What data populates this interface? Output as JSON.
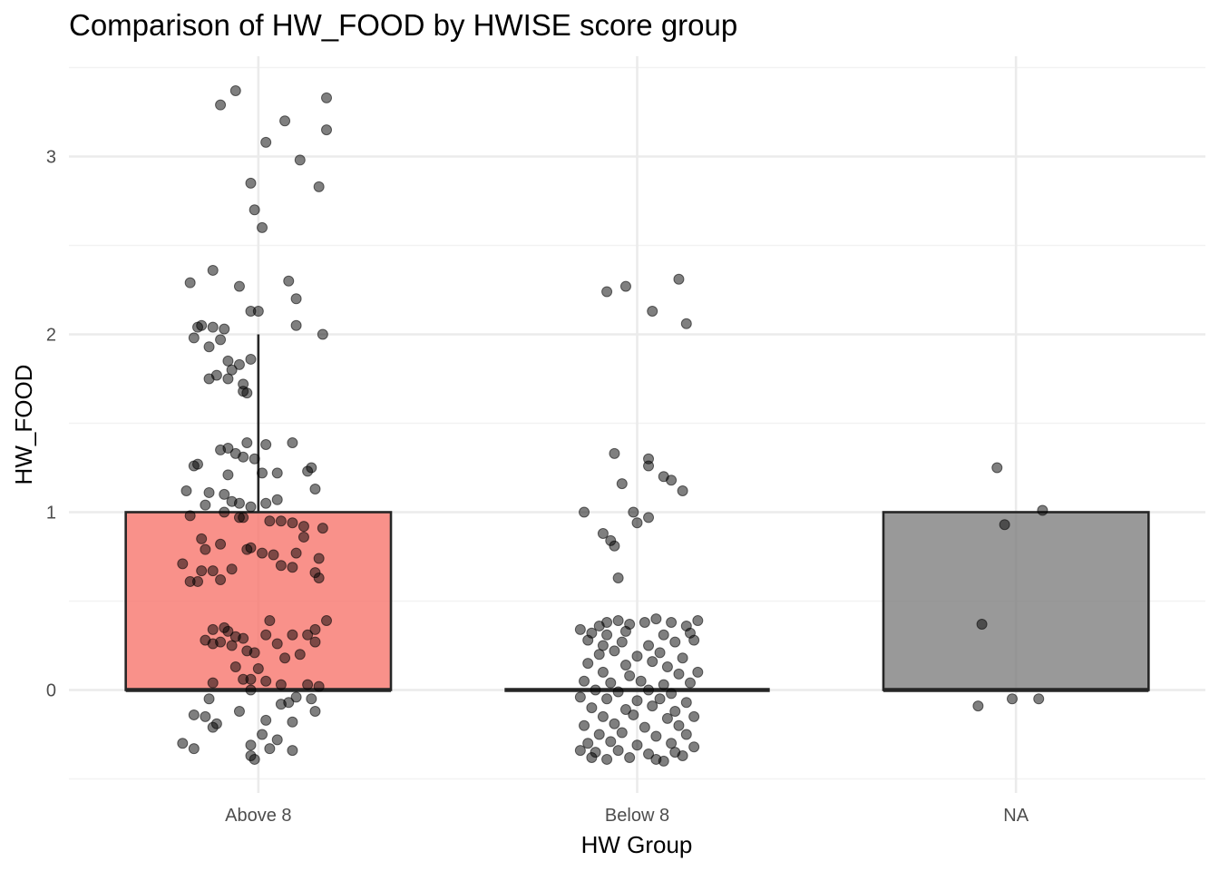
{
  "chart_data": {
    "type": "boxplot",
    "title": "Comparison of HW_FOOD by HWISE score group",
    "xlabel": "HW Group",
    "ylabel": "HW_FOOD",
    "ylim": [
      -0.5,
      3.5
    ],
    "yticks": [
      "0",
      "1",
      "2",
      "3"
    ],
    "categories": [
      "Above 8",
      "Below 8",
      "NA"
    ],
    "boxes": [
      {
        "category": "Above 8",
        "min": 0,
        "q1": 0,
        "median": 0,
        "q3": 1,
        "max": 2,
        "fill": "#f8766d"
      },
      {
        "category": "Below 8",
        "min": 0,
        "q1": 0,
        "median": 0,
        "q3": 0,
        "max": 0,
        "fill": "#f8766d"
      },
      {
        "category": "NA",
        "min": 0,
        "q1": 0,
        "median": 0,
        "q3": 1,
        "max": 1,
        "fill": "#7f7f7f"
      }
    ],
    "points": {
      "Above 8": [
        [
          -0.06,
          3.37
        ],
        [
          -0.1,
          3.29
        ],
        [
          0.18,
          3.33
        ],
        [
          0.07,
          3.2
        ],
        [
          0.18,
          3.15
        ],
        [
          0.02,
          3.08
        ],
        [
          0.11,
          2.98
        ],
        [
          -0.02,
          2.85
        ],
        [
          0.16,
          2.83
        ],
        [
          -0.01,
          2.7
        ],
        [
          0.01,
          2.6
        ],
        [
          -0.12,
          2.36
        ],
        [
          -0.18,
          2.29
        ],
        [
          0.08,
          2.3
        ],
        [
          -0.05,
          2.27
        ],
        [
          0.1,
          2.2
        ],
        [
          -0.02,
          2.13
        ],
        [
          0.0,
          2.13
        ],
        [
          0.17,
          2.0
        ],
        [
          0.1,
          2.05
        ],
        [
          -0.16,
          2.04
        ],
        [
          -0.12,
          2.04
        ],
        [
          -0.09,
          2.03
        ],
        [
          -0.15,
          2.05
        ],
        [
          -0.17,
          1.98
        ],
        [
          -0.1,
          1.97
        ],
        [
          -0.13,
          1.93
        ],
        [
          -0.08,
          1.85
        ],
        [
          -0.02,
          1.86
        ],
        [
          -0.05,
          1.83
        ],
        [
          -0.07,
          1.8
        ],
        [
          -0.11,
          1.77
        ],
        [
          -0.13,
          1.75
        ],
        [
          -0.08,
          1.75
        ],
        [
          -0.04,
          1.72
        ],
        [
          -0.03,
          1.67
        ],
        [
          -0.04,
          1.68
        ],
        [
          0.02,
          1.38
        ],
        [
          0.09,
          1.39
        ],
        [
          -0.03,
          1.39
        ],
        [
          -0.1,
          1.35
        ],
        [
          -0.08,
          1.36
        ],
        [
          -0.06,
          1.33
        ],
        [
          -0.04,
          1.31
        ],
        [
          -0.01,
          1.3
        ],
        [
          -0.16,
          1.27
        ],
        [
          -0.17,
          1.26
        ],
        [
          0.14,
          1.25
        ],
        [
          0.13,
          1.23
        ],
        [
          0.01,
          1.22
        ],
        [
          0.05,
          1.22
        ],
        [
          -0.08,
          1.21
        ],
        [
          0.15,
          1.13
        ],
        [
          -0.19,
          1.12
        ],
        [
          -0.13,
          1.11
        ],
        [
          -0.09,
          1.1
        ],
        [
          -0.07,
          1.06
        ],
        [
          -0.05,
          1.05
        ],
        [
          0.02,
          1.05
        ],
        [
          0.05,
          1.07
        ],
        [
          -0.14,
          1.04
        ],
        [
          -0.02,
          1.03
        ],
        [
          -0.09,
          1.0
        ],
        [
          -0.18,
          0.98
        ],
        [
          -0.05,
          0.97
        ],
        [
          -0.04,
          0.97
        ],
        [
          0.03,
          0.95
        ],
        [
          0.06,
          0.95
        ],
        [
          0.09,
          0.94
        ],
        [
          0.12,
          0.92
        ],
        [
          0.17,
          0.91
        ],
        [
          0.12,
          0.86
        ],
        [
          -0.15,
          0.85
        ],
        [
          -0.1,
          0.82
        ],
        [
          -0.14,
          0.79
        ],
        [
          -0.03,
          0.79
        ],
        [
          -0.02,
          0.8
        ],
        [
          0.01,
          0.77
        ],
        [
          0.04,
          0.76
        ],
        [
          0.1,
          0.77
        ],
        [
          0.16,
          0.74
        ],
        [
          -0.2,
          0.71
        ],
        [
          0.06,
          0.7
        ],
        [
          0.09,
          0.69
        ],
        [
          -0.15,
          0.67
        ],
        [
          -0.12,
          0.67
        ],
        [
          -0.07,
          0.68
        ],
        [
          0.15,
          0.66
        ],
        [
          0.16,
          0.63
        ],
        [
          -0.18,
          0.61
        ],
        [
          -0.16,
          0.61
        ],
        [
          -0.1,
          0.62
        ],
        [
          0.18,
          0.39
        ],
        [
          0.03,
          0.39
        ],
        [
          -0.09,
          0.35
        ],
        [
          -0.12,
          0.34
        ],
        [
          -0.08,
          0.33
        ],
        [
          0.15,
          0.34
        ],
        [
          -0.06,
          0.3
        ],
        [
          -0.04,
          0.29
        ],
        [
          0.02,
          0.31
        ],
        [
          0.09,
          0.31
        ],
        [
          0.13,
          0.31
        ],
        [
          -0.14,
          0.28
        ],
        [
          -0.12,
          0.26
        ],
        [
          -0.1,
          0.27
        ],
        [
          -0.07,
          0.25
        ],
        [
          0.05,
          0.26
        ],
        [
          0.15,
          0.27
        ],
        [
          -0.03,
          0.22
        ],
        [
          -0.01,
          0.21
        ],
        [
          0.07,
          0.18
        ],
        [
          0.11,
          0.2
        ],
        [
          -0.06,
          0.13
        ],
        [
          0.0,
          0.12
        ],
        [
          -0.04,
          0.06
        ],
        [
          -0.02,
          0.06
        ],
        [
          0.02,
          0.05
        ],
        [
          -0.12,
          0.04
        ],
        [
          0.06,
          0.03
        ],
        [
          0.13,
          0.03
        ],
        [
          0.16,
          0.02
        ],
        [
          -0.02,
          0.0
        ],
        [
          0.1,
          -0.04
        ],
        [
          0.14,
          -0.05
        ],
        [
          -0.13,
          -0.05
        ],
        [
          0.08,
          -0.07
        ],
        [
          0.06,
          -0.08
        ],
        [
          -0.05,
          -0.12
        ],
        [
          -0.17,
          -0.14
        ],
        [
          -0.14,
          -0.15
        ],
        [
          0.15,
          -0.12
        ],
        [
          0.02,
          -0.17
        ],
        [
          -0.11,
          -0.19
        ],
        [
          -0.12,
          -0.21
        ],
        [
          0.09,
          -0.18
        ],
        [
          0.01,
          -0.25
        ],
        [
          -0.2,
          -0.3
        ],
        [
          -0.17,
          -0.33
        ],
        [
          0.05,
          -0.28
        ],
        [
          -0.02,
          -0.31
        ],
        [
          0.03,
          -0.33
        ],
        [
          0.09,
          -0.34
        ],
        [
          -0.02,
          -0.37
        ],
        [
          -0.01,
          -0.39
        ]
      ],
      "Below 8": [
        [
          -0.08,
          2.24
        ],
        [
          -0.03,
          2.27
        ],
        [
          0.11,
          2.31
        ],
        [
          0.04,
          2.13
        ],
        [
          0.13,
          2.06
        ],
        [
          -0.06,
          1.33
        ],
        [
          0.03,
          1.3
        ],
        [
          0.03,
          1.26
        ],
        [
          0.07,
          1.2
        ],
        [
          0.09,
          1.18
        ],
        [
          -0.04,
          1.16
        ],
        [
          0.12,
          1.12
        ],
        [
          -0.14,
          1.0
        ],
        [
          -0.01,
          1.0
        ],
        [
          0.03,
          0.97
        ],
        [
          0.0,
          0.94
        ],
        [
          -0.09,
          0.88
        ],
        [
          -0.07,
          0.84
        ],
        [
          -0.06,
          0.81
        ],
        [
          -0.05,
          0.63
        ],
        [
          -0.1,
          0.36
        ],
        [
          -0.08,
          0.38
        ],
        [
          -0.05,
          0.39
        ],
        [
          -0.02,
          0.37
        ],
        [
          0.02,
          0.38
        ],
        [
          0.05,
          0.4
        ],
        [
          0.09,
          0.38
        ],
        [
          0.13,
          0.36
        ],
        [
          0.16,
          0.39
        ],
        [
          -0.15,
          0.34
        ],
        [
          -0.12,
          0.32
        ],
        [
          -0.08,
          0.31
        ],
        [
          -0.03,
          0.33
        ],
        [
          0.07,
          0.31
        ],
        [
          0.14,
          0.32
        ],
        [
          -0.13,
          0.28
        ],
        [
          -0.09,
          0.25
        ],
        [
          -0.04,
          0.27
        ],
        [
          0.03,
          0.25
        ],
        [
          0.1,
          0.27
        ],
        [
          0.15,
          0.28
        ],
        [
          -0.1,
          0.2
        ],
        [
          -0.06,
          0.22
        ],
        [
          0.0,
          0.19
        ],
        [
          0.06,
          0.21
        ],
        [
          0.12,
          0.18
        ],
        [
          -0.13,
          0.15
        ],
        [
          -0.03,
          0.14
        ],
        [
          0.04,
          0.16
        ],
        [
          0.08,
          0.13
        ],
        [
          -0.09,
          0.1
        ],
        [
          -0.02,
          0.08
        ],
        [
          0.11,
          0.09
        ],
        [
          0.16,
          0.1
        ],
        [
          -0.14,
          0.05
        ],
        [
          -0.07,
          0.04
        ],
        [
          0.01,
          0.05
        ],
        [
          0.07,
          0.03
        ],
        [
          0.14,
          0.04
        ],
        [
          -0.11,
          0.0
        ],
        [
          -0.05,
          -0.01
        ],
        [
          0.03,
          0.0
        ],
        [
          0.09,
          -0.02
        ],
        [
          -0.15,
          -0.04
        ],
        [
          -0.08,
          -0.05
        ],
        [
          0.0,
          -0.06
        ],
        [
          0.06,
          -0.05
        ],
        [
          0.13,
          -0.07
        ],
        [
          -0.12,
          -0.1
        ],
        [
          -0.03,
          -0.11
        ],
        [
          0.04,
          -0.09
        ],
        [
          0.1,
          -0.12
        ],
        [
          -0.09,
          -0.15
        ],
        [
          -0.01,
          -0.14
        ],
        [
          0.08,
          -0.16
        ],
        [
          0.15,
          -0.15
        ],
        [
          -0.14,
          -0.2
        ],
        [
          -0.06,
          -0.19
        ],
        [
          0.02,
          -0.21
        ],
        [
          0.11,
          -0.2
        ],
        [
          -0.1,
          -0.25
        ],
        [
          -0.04,
          -0.24
        ],
        [
          0.05,
          -0.26
        ],
        [
          0.13,
          -0.25
        ],
        [
          -0.13,
          -0.3
        ],
        [
          -0.07,
          -0.29
        ],
        [
          0.0,
          -0.31
        ],
        [
          0.09,
          -0.3
        ],
        [
          0.15,
          -0.32
        ],
        [
          -0.15,
          -0.34
        ],
        [
          -0.11,
          -0.35
        ],
        [
          -0.05,
          -0.34
        ],
        [
          0.03,
          -0.36
        ],
        [
          0.1,
          -0.35
        ],
        [
          -0.12,
          -0.38
        ],
        [
          -0.08,
          -0.39
        ],
        [
          -0.02,
          -0.38
        ],
        [
          0.05,
          -0.39
        ],
        [
          0.12,
          -0.37
        ],
        [
          0.07,
          -0.4
        ]
      ],
      "NA": [
        [
          -0.05,
          1.25
        ],
        [
          0.07,
          1.01
        ],
        [
          -0.03,
          0.93
        ],
        [
          -0.09,
          0.37
        ],
        [
          -0.1,
          -0.09
        ],
        [
          -0.01,
          -0.05
        ],
        [
          0.06,
          -0.05
        ]
      ]
    }
  }
}
